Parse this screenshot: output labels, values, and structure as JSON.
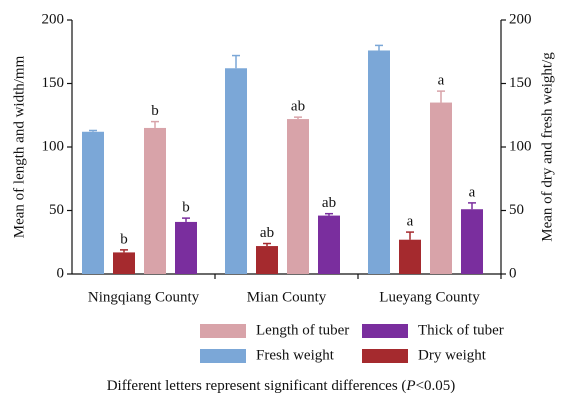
{
  "chart_data": {
    "type": "bar",
    "categories": [
      "Ningqiang County",
      "Mian County",
      "Lueyang County"
    ],
    "series": [
      {
        "name": "Fresh weight",
        "color": "#7ba7d7",
        "axis": "y2",
        "values": [
          112,
          162,
          176
        ],
        "errors": [
          1,
          10,
          4
        ]
      },
      {
        "name": "Dry weight",
        "color": "#a52a2e",
        "axis": "y2",
        "values": [
          17,
          22,
          27
        ],
        "errors": [
          2,
          2,
          6
        ],
        "labels": [
          "b",
          "ab",
          "a"
        ]
      },
      {
        "name": "Length of tuber",
        "color": "#d8a3a9",
        "values": [
          115,
          122,
          135
        ],
        "errors": [
          5,
          1.5,
          9
        ],
        "labels": [
          "b",
          "ab",
          "a"
        ]
      },
      {
        "name": "Thick of tuber",
        "color": "#7a2e9e",
        "values": [
          41,
          46,
          51
        ],
        "errors": [
          3,
          1.5,
          5
        ],
        "labels": [
          "b",
          "ab",
          "a"
        ]
      }
    ],
    "ylabel": "Mean of length and width/mm",
    "y2label": "Mean of dry and fresh weight/g",
    "ylim": [
      0,
      200
    ],
    "yticks": [
      0,
      50,
      100,
      150,
      200
    ],
    "y2lim": [
      0,
      200
    ],
    "y2ticks": [
      0,
      50,
      100,
      150,
      200
    ],
    "grid": false,
    "note": [
      "Different letters represent significant differences (",
      "P",
      "<0.05)"
    ]
  }
}
